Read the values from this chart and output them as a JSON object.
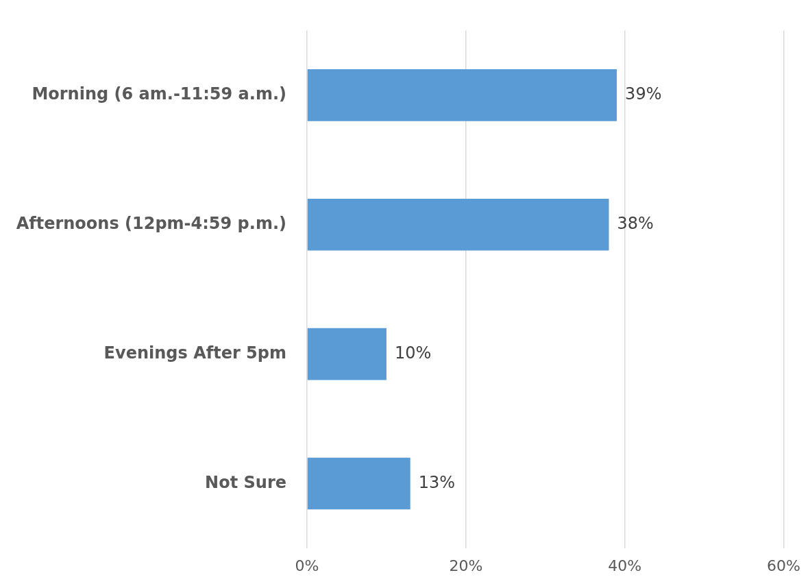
{
  "chart_data": {
    "type": "bar",
    "orientation": "horizontal",
    "categories": [
      "Morning (6 am.-11:59 a.m.)",
      "Afternoons (12pm-4:59 p.m.)",
      "Evenings After 5pm",
      "Not Sure"
    ],
    "values": [
      39,
      38,
      10,
      13
    ],
    "value_labels": [
      "39%",
      "38%",
      "10%",
      "13%"
    ],
    "color": "#5b9bd5",
    "xlim": [
      0,
      60
    ],
    "xticks": [
      {
        "value": 0,
        "label": "0%"
      },
      {
        "value": 20,
        "label": "20%"
      },
      {
        "value": 40,
        "label": "40%"
      },
      {
        "value": 60,
        "label": "60%"
      }
    ],
    "grid": "x",
    "legend": false
  }
}
